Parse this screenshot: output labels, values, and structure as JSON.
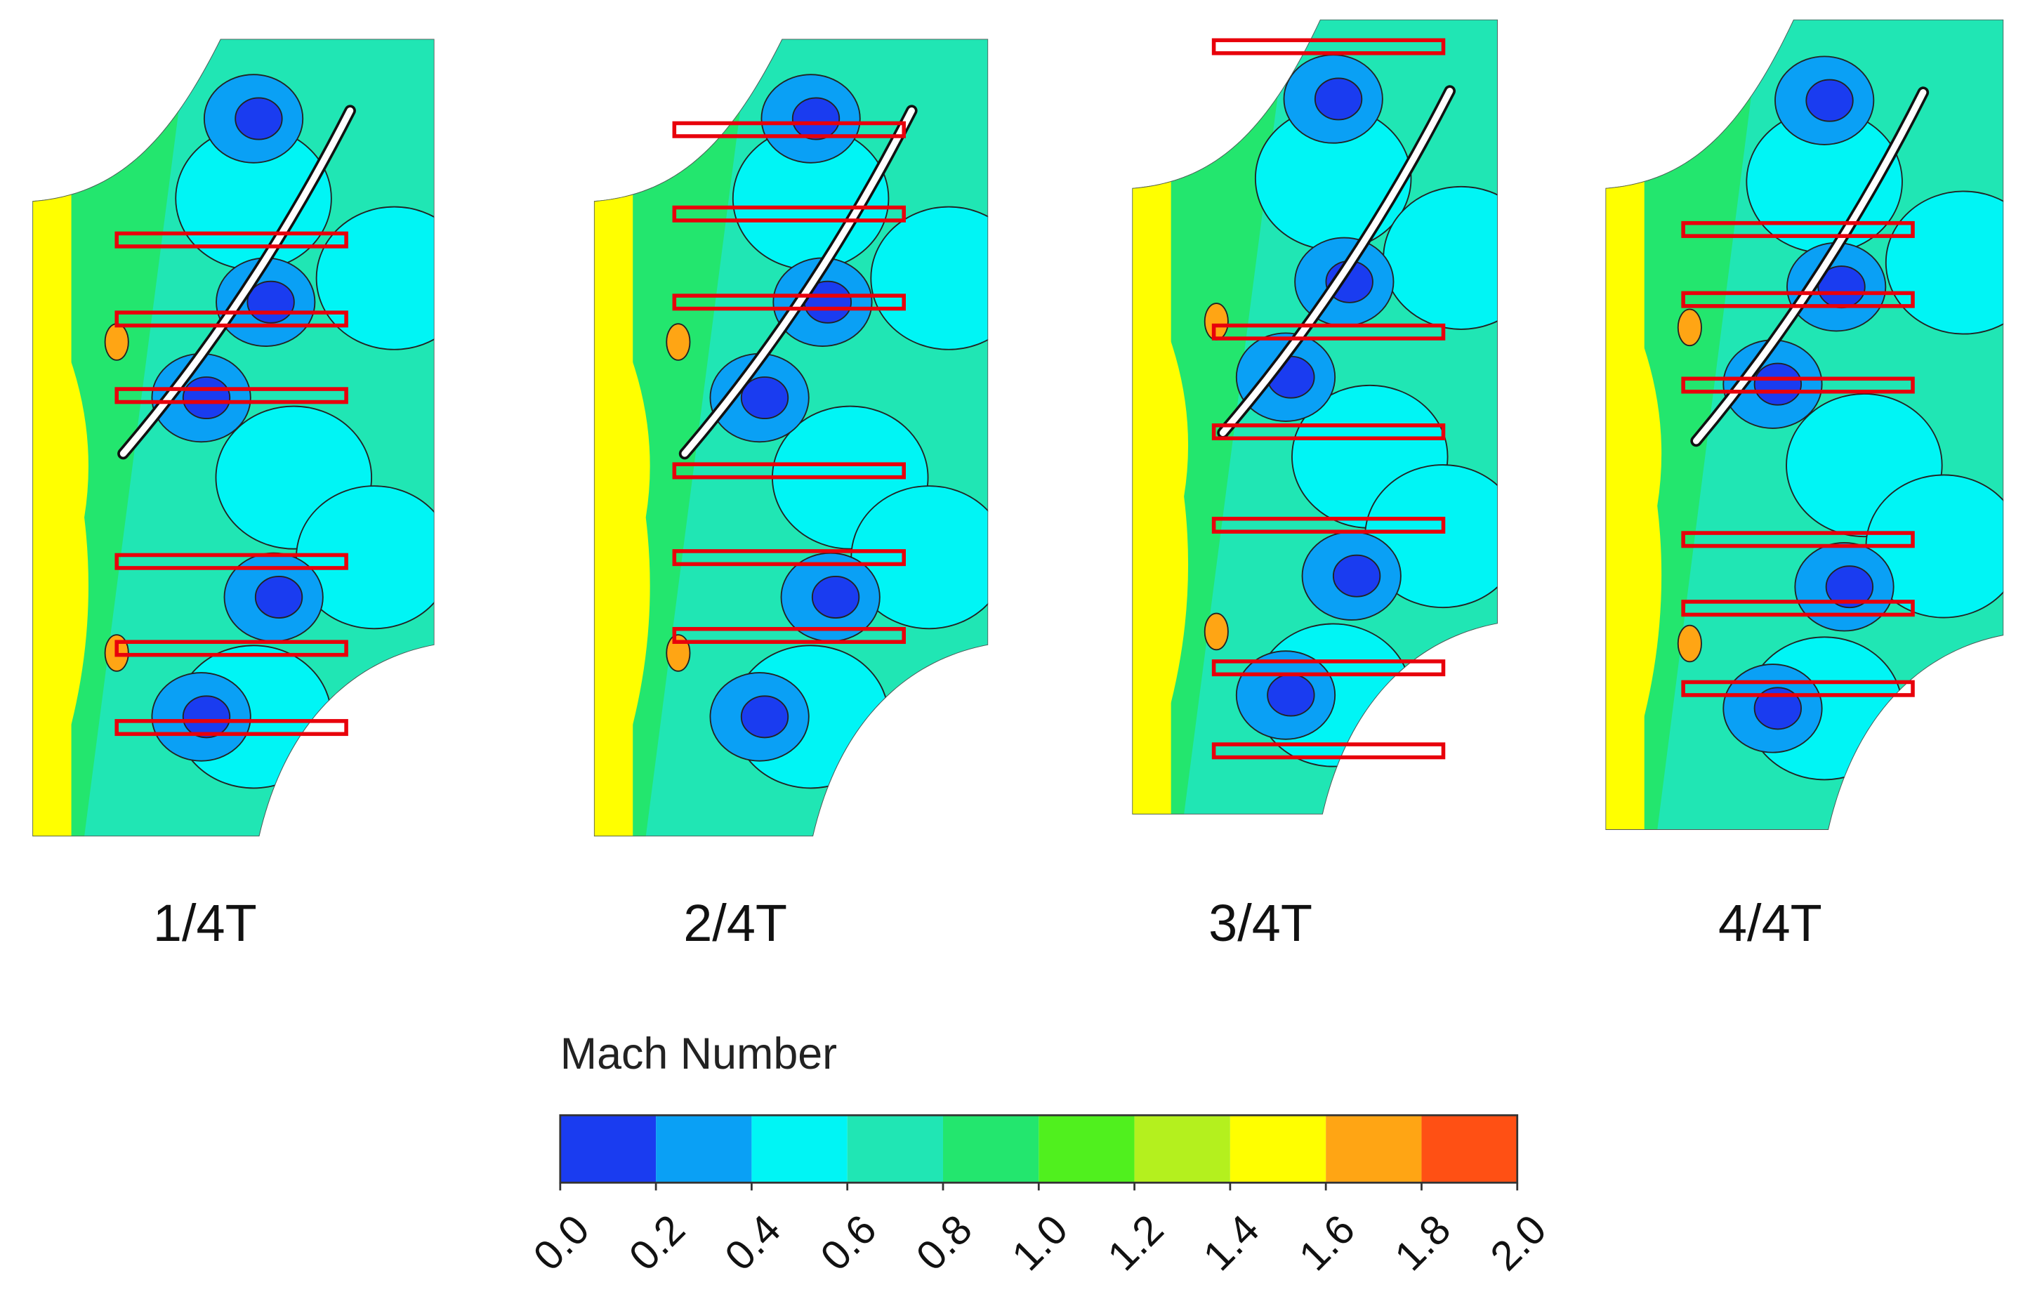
{
  "panels": [
    {
      "label": "1/4T"
    },
    {
      "label": "2/4T"
    },
    {
      "label": "3/4T"
    },
    {
      "label": "4/4T"
    }
  ],
  "colorbar": {
    "title": "Mach Number",
    "lim": [
      0,
      2
    ],
    "colors": [
      "#1a3cf0",
      "#0aa0f5",
      "#00f5f5",
      "#20e6b4",
      "#23e66e",
      "#50f01e",
      "#b4f01e",
      "#ffff00",
      "#ffa514",
      "#ff5014"
    ],
    "ticks": [
      {
        "value": 0,
        "label": "0.0"
      },
      {
        "value": 0.2,
        "label": "0.2"
      },
      {
        "value": 0.4,
        "label": "0.4"
      },
      {
        "value": 0.6,
        "label": "0.6"
      },
      {
        "value": 0.8,
        "label": "0.8"
      },
      {
        "value": 1,
        "label": "1.0"
      },
      {
        "value": 1.2,
        "label": "1.2"
      },
      {
        "value": 1.4,
        "label": "1.4"
      },
      {
        "value": 1.6,
        "label": "1.6"
      },
      {
        "value": 1.8,
        "label": "1.8"
      },
      {
        "value": 2,
        "label": "2.0"
      }
    ]
  }
}
